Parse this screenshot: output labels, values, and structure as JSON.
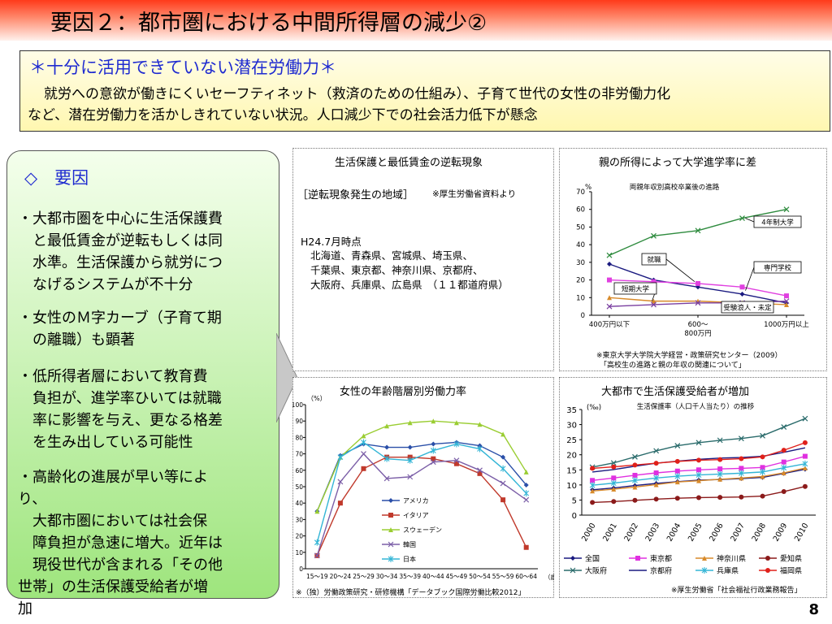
{
  "slide": {
    "title": "要因２：都市圏における中間所得層の減少②",
    "page_number": "8"
  },
  "summary": {
    "heading": "＊十分に活用できていない潜在労働力＊",
    "line1": "就労への意欲が働きにくいセーフティネット（救済のための仕組み）、子育て世代の女性の非労働力化",
    "line2": "など、潜在労働力を活かしきれていない状況。人口減少下での社会活力低下が懸念"
  },
  "factors": {
    "heading": "◇　要因",
    "items": [
      {
        "lines": [
          "・大都市圏を中心に生活保護費",
          "　と最低賃金が逆転もしくは同",
          "　水準。生活保護から就労につ",
          "　なげるシステムが不十分"
        ]
      },
      {
        "lines": [
          "・女性のＭ字カーブ（子育て期",
          "　の離職）も顕著"
        ]
      },
      {
        "lines": [
          "・低所得者層において教育費",
          "　負担が、進学率ひいては就職",
          "　率に影響を与え、更なる格差",
          "　を生み出している可能性"
        ]
      },
      {
        "lines": [
          "・高齢化の進展が早い等によ",
          "り、",
          "　大都市圏においては社会保",
          "　障負担が急速に増大。近年は",
          "　現役世代が含まれる「その他",
          "世帯」の生活保護受給者が増",
          "加"
        ]
      }
    ]
  },
  "panel1": {
    "title": "生活保護と最低賃金の逆転現象",
    "region_label": "［逆転現象発生の地域］",
    "source": "※厚生労働省資料より",
    "date": "H24.7月時点",
    "lines": [
      "北海道、青森県、宮城県、埼玉県、",
      "千葉県、東京都、神奈川県、京都府、",
      "大阪府、兵庫県、広島県　（１１都道府県）"
    ]
  },
  "panel2": {
    "title": "親の所得によって大学進学率に差",
    "note1": "※東京大学大学院大学経営・政策研究センター（2009）",
    "note2": "「高校生の進路と親の年収の関連について」",
    "chart_data": {
      "type": "line",
      "title": "両親年収別高校卒業後の進路",
      "ylabel": "%",
      "ylim": [
        0,
        70
      ],
      "yticks": [
        "0",
        "10",
        "20",
        "30",
        "40",
        "50",
        "60",
        "70"
      ],
      "xticks": [
        "400万円以下",
        "600～\n800万円",
        "1000万円以上"
      ],
      "series": [
        {
          "name": "4年制大学",
          "color": "#2e8b3e",
          "marker": "x",
          "values": [
            34,
            45,
            48,
            55,
            60
          ]
        },
        {
          "name": "就職",
          "color": "#1a1a80",
          "marker": "diamond",
          "values": [
            29,
            20,
            16,
            12,
            7
          ]
        },
        {
          "name": "専門学校",
          "color": "#e040e0",
          "marker": "square",
          "values": [
            20,
            19,
            18,
            16,
            11
          ]
        },
        {
          "name": "短期大学",
          "color": "#d88a2a",
          "marker": "triangle",
          "values": [
            10,
            8,
            8,
            7,
            6
          ]
        },
        {
          "name": "受験浪人・未定",
          "color": "#7a3fa0",
          "marker": "x",
          "values": [
            5,
            6,
            7,
            7,
            8
          ]
        }
      ]
    }
  },
  "panel3": {
    "title": "女性の年齢階層別労働力率",
    "note": "※（独）労働政策研究・研修機構「データブック国際労働比較2012」",
    "chart_data": {
      "type": "line",
      "ylabel": "（%）",
      "xlabel": "（歳）",
      "ylim": [
        0,
        100
      ],
      "yticks": [
        "0",
        "10",
        "20",
        "30",
        "40",
        "50",
        "60",
        "70",
        "80",
        "90",
        "100"
      ],
      "categories": [
        "15～19",
        "20～24",
        "25～29",
        "30～34",
        "35～39",
        "40～44",
        "45～49",
        "50～54",
        "55～59",
        "60～64"
      ],
      "series": [
        {
          "name": "アメリカ",
          "color": "#2a4fa8",
          "marker": "diamond",
          "values": [
            35,
            69,
            76,
            74,
            74,
            76,
            77,
            75,
            68,
            51
          ]
        },
        {
          "name": "イタリア",
          "color": "#c0392b",
          "marker": "square",
          "values": [
            8,
            40,
            61,
            68,
            68,
            67,
            64,
            58,
            42,
            13
          ]
        },
        {
          "name": "スウェーデン",
          "color": "#9acd32",
          "marker": "triangle",
          "values": [
            35,
            68,
            81,
            87,
            89,
            90,
            89,
            88,
            82,
            59
          ]
        },
        {
          "name": "韓国",
          "color": "#7b5ea7",
          "marker": "x",
          "values": [
            8,
            53,
            70,
            55,
            56,
            65,
            66,
            60,
            52,
            42
          ]
        },
        {
          "name": "日本",
          "color": "#33b5d6",
          "marker": "star",
          "values": [
            16,
            68,
            77,
            67,
            66,
            72,
            76,
            73,
            61,
            46
          ]
        }
      ]
    }
  },
  "panel4": {
    "title": "大都市で生活保護受給者が増加",
    "note": "※厚生労働省「社会福祉行政業務報告」",
    "chart_data": {
      "type": "line",
      "title": "生活保護率（人口千人当たり）の推移",
      "ylabel": "(‰)",
      "ylim": [
        0,
        35
      ],
      "yticks": [
        "0",
        "5",
        "10",
        "15",
        "20",
        "25",
        "30",
        "35"
      ],
      "categories": [
        "2000",
        "2001",
        "2002",
        "2003",
        "2004",
        "2005",
        "2006",
        "2007",
        "2008",
        "2009",
        "2010"
      ],
      "series": [
        {
          "name": "全国",
          "color": "#1a1a80",
          "marker": "diamond",
          "values": [
            8.4,
            9.0,
            9.8,
            10.5,
            11.1,
            11.6,
            11.8,
            12.1,
            12.5,
            13.8,
            15.2
          ]
        },
        {
          "name": "東京都",
          "color": "#e030e0",
          "marker": "square",
          "values": [
            11.5,
            12.3,
            13.2,
            14.0,
            14.6,
            15.0,
            15.3,
            15.5,
            15.8,
            17.6,
            19.5
          ]
        },
        {
          "name": "神奈川県",
          "color": "#d88a2a",
          "marker": "triangle",
          "values": [
            8.0,
            8.6,
            9.3,
            10.1,
            11.0,
            11.4,
            11.9,
            12.3,
            12.8,
            14.0,
            15.6
          ]
        },
        {
          "name": "愛知県",
          "color": "#8b1a1a",
          "marker": "circle",
          "values": [
            4.2,
            4.5,
            4.9,
            5.3,
            5.6,
            5.8,
            5.9,
            6.0,
            6.3,
            7.8,
            9.5
          ]
        },
        {
          "name": "大阪府",
          "color": "#2a6b6b",
          "marker": "x",
          "values": [
            15.9,
            17.3,
            19.3,
            21.3,
            23.0,
            24.0,
            24.8,
            25.4,
            26.3,
            29.2,
            32.0
          ]
        },
        {
          "name": "京都府",
          "color": "#1a1a80",
          "marker": "line",
          "values": [
            14.3,
            15.1,
            16.2,
            17.2,
            17.9,
            18.5,
            18.9,
            19.1,
            19.5,
            20.8,
            22.3
          ]
        },
        {
          "name": "兵庫県",
          "color": "#33b5d6",
          "marker": "star",
          "values": [
            9.9,
            10.6,
            11.5,
            12.3,
            12.9,
            13.3,
            13.6,
            13.9,
            14.3,
            15.7,
            17.0
          ]
        },
        {
          "name": "福岡県",
          "color": "#e0201a",
          "marker": "circle",
          "values": [
            15.5,
            16.0,
            16.6,
            17.2,
            17.8,
            18.2,
            18.4,
            18.7,
            19.3,
            21.5,
            24.0
          ]
        }
      ]
    }
  }
}
